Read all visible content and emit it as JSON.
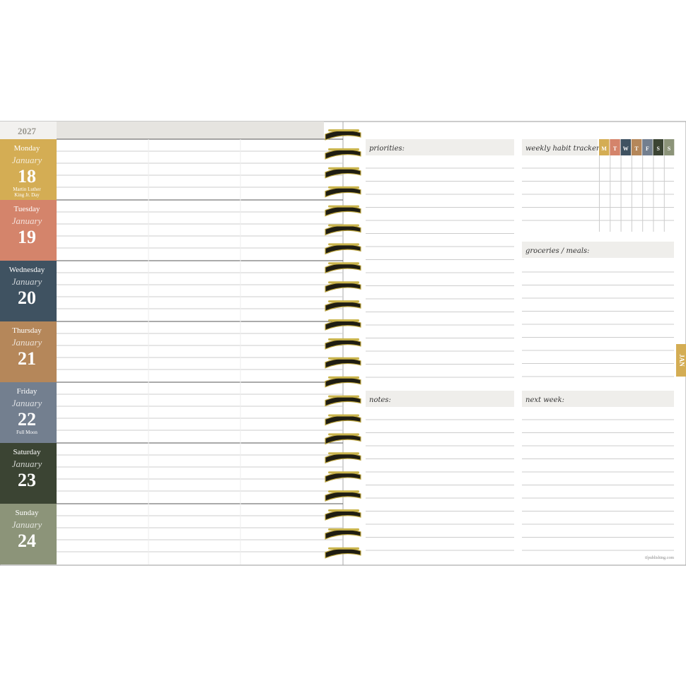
{
  "year": 2027,
  "days": [
    {
      "weekday": "Monday",
      "month": "January",
      "date": 18,
      "note": [
        "Martin Luther",
        "King Jr. Day"
      ]
    },
    {
      "weekday": "Tuesday",
      "month": "January",
      "date": 19
    },
    {
      "weekday": "Wednesday",
      "month": "January",
      "date": 20
    },
    {
      "weekday": "Thursday",
      "month": "January",
      "date": 21
    },
    {
      "weekday": "Friday",
      "month": "January",
      "date": 22,
      "note": [
        "Full Moon"
      ]
    },
    {
      "weekday": "Saturday",
      "month": "January",
      "date": 23
    },
    {
      "weekday": "Sunday",
      "month": "January",
      "date": 24
    }
  ],
  "sections": {
    "priorities": "priorities:",
    "habit_tracker": "weekly habit tracker:",
    "groceries": "groceries / meals:",
    "notes": "notes:",
    "next_week": "next week:"
  },
  "habit_days": [
    "M",
    "T",
    "W",
    "T",
    "F",
    "S",
    "S"
  ],
  "month_tab": "JAN",
  "footer": "tfpublishing.com"
}
